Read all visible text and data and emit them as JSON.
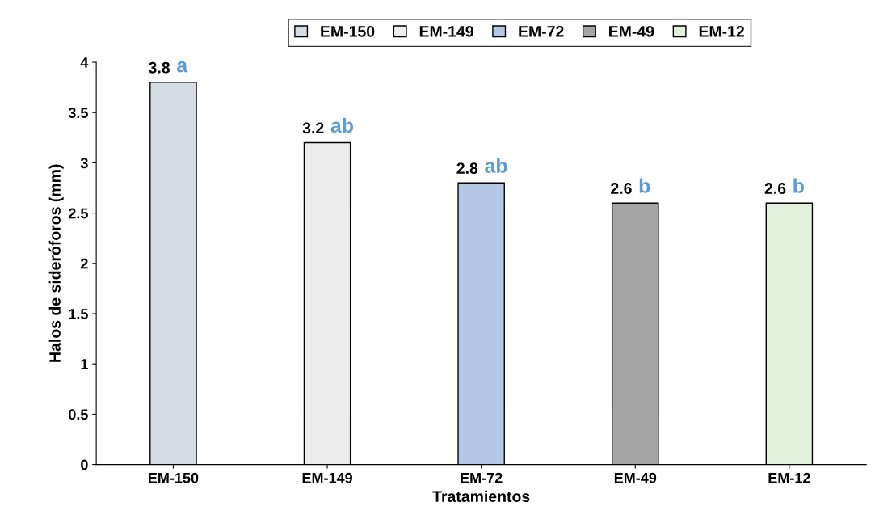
{
  "chart_data": {
    "type": "bar",
    "xlabel": "Tratamientos",
    "ylabel": "Halos de sideróforos (mm)",
    "categories": [
      "EM-150",
      "EM-149",
      "EM-72",
      "EM-49",
      "EM-12"
    ],
    "series": [
      {
        "name": "EM-150",
        "color": "#d6dce4",
        "values": [
          3.8,
          null,
          null,
          null,
          null
        ]
      },
      {
        "name": "EM-149",
        "color": "#ededed",
        "values": [
          null,
          3.2,
          null,
          null,
          null
        ]
      },
      {
        "name": "EM-72",
        "color": "#b4c7e7",
        "values": [
          null,
          null,
          2.8,
          null,
          null
        ]
      },
      {
        "name": "EM-49",
        "color": "#a5a5a5",
        "values": [
          null,
          null,
          null,
          2.6,
          null
        ]
      },
      {
        "name": "EM-12",
        "color": "#e2efda",
        "values": [
          null,
          null,
          null,
          null,
          2.6
        ]
      }
    ],
    "ylim": [
      0,
      4
    ],
    "yticks": [
      0,
      0.5,
      1,
      1.5,
      2,
      2.5,
      3,
      3.5,
      4
    ],
    "data_labels": true,
    "legend": "top",
    "grid": false,
    "annotations": [
      {
        "text": "a",
        "x": "EM-150",
        "y": 3.8
      },
      {
        "text": "ab",
        "x": "EM-149",
        "y": 3.2
      },
      {
        "text": "ab",
        "x": "EM-72",
        "y": 2.8
      },
      {
        "text": "b",
        "x": "EM-49",
        "y": 2.6
      },
      {
        "text": "b",
        "x": "EM-12",
        "y": 2.6
      }
    ]
  }
}
